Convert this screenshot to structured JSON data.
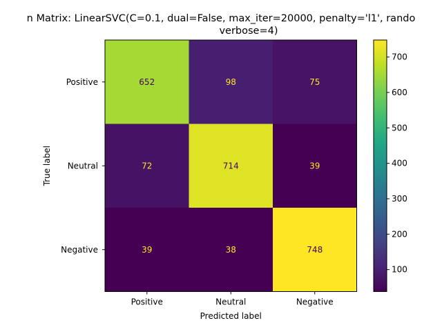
{
  "chart_data": {
    "type": "heatmap",
    "title_line1": "n Matrix: LinearSVC(C=0.1, dual=False, max_iter=20000, penalty='l1', rando",
    "title_line2": "verbose=4)",
    "xlabel": "Predicted label",
    "ylabel": "True label",
    "x_categories": [
      "Positive",
      "Neutral",
      "Negative"
    ],
    "y_categories": [
      "Positive",
      "Neutral",
      "Negative"
    ],
    "values": [
      [
        652,
        98,
        75
      ],
      [
        72,
        714,
        39
      ],
      [
        39,
        38,
        748
      ]
    ],
    "colormap": "viridis",
    "colorbar": {
      "min": 38,
      "max": 748,
      "ticks": [
        100,
        200,
        300,
        400,
        500,
        600,
        700
      ]
    },
    "text_color_dark": "#440154",
    "text_color_light": "#fde725"
  }
}
